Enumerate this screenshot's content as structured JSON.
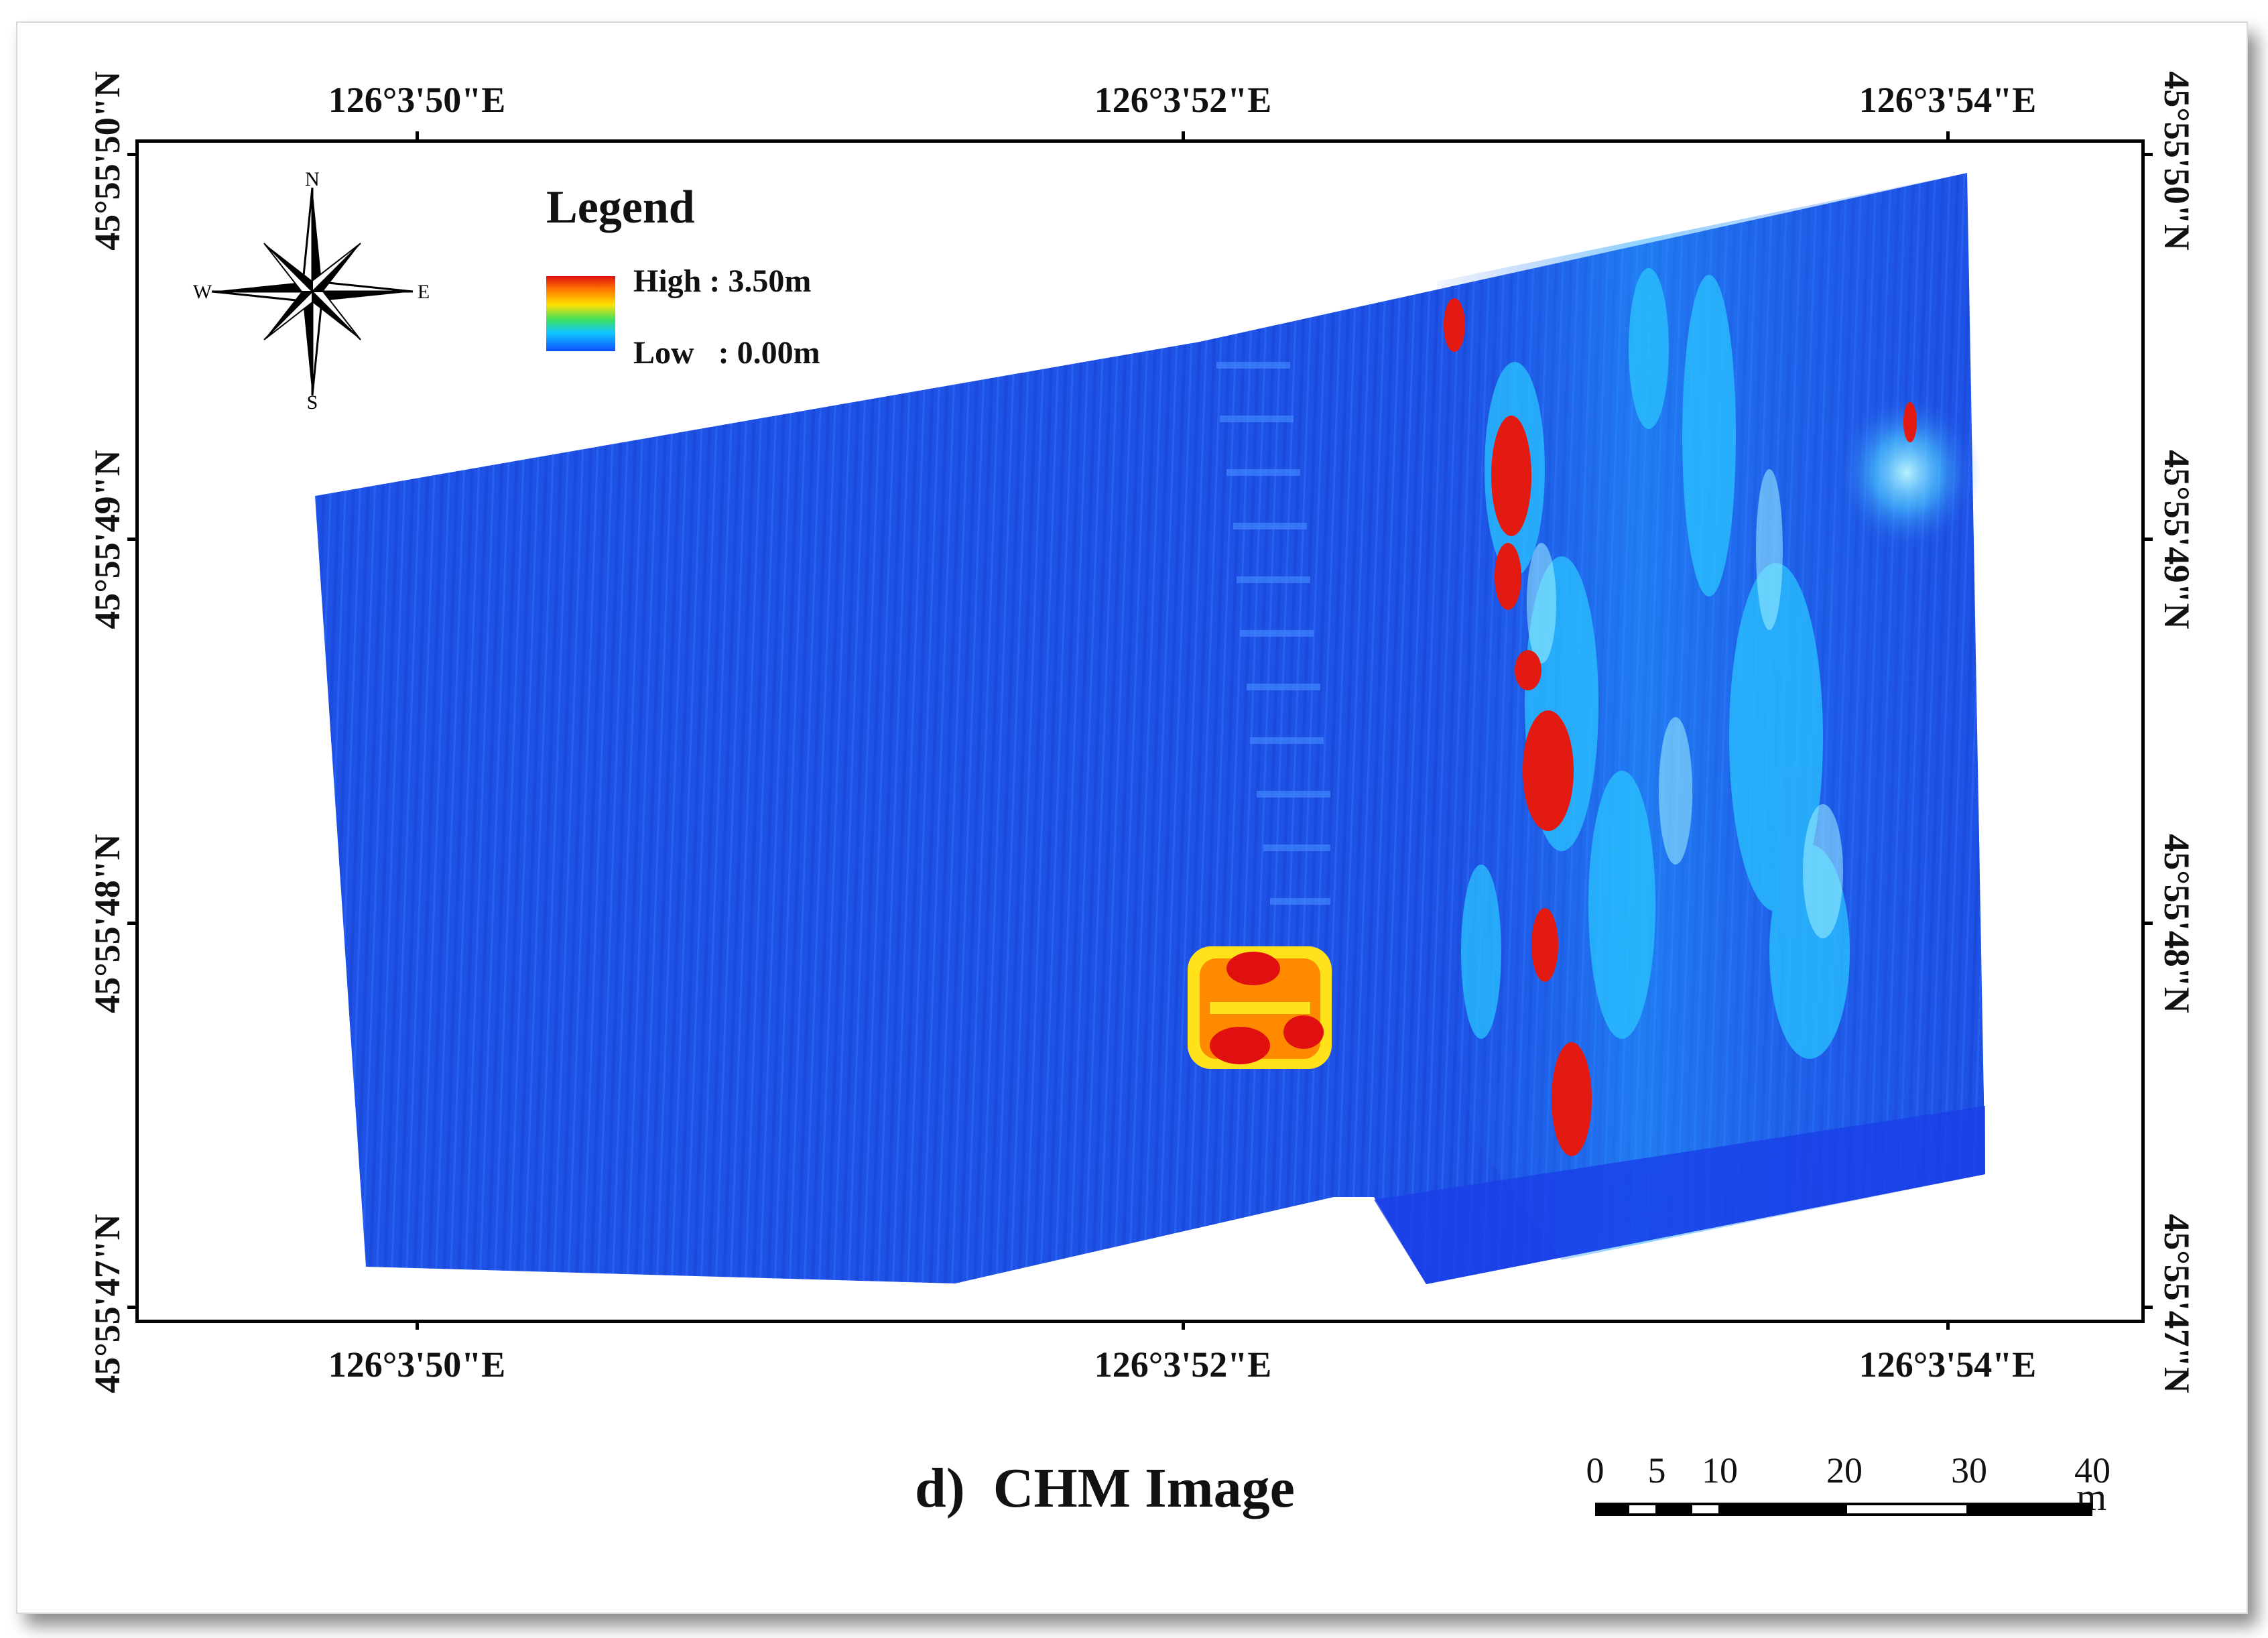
{
  "coordinates": {
    "longitude_labels": [
      "126°3'50\"E",
      "126°3'52\"E",
      "126°3'54\"E"
    ],
    "latitude_labels": [
      "45°55'50\"N",
      "45°55'49\"N",
      "45°55'48\"N",
      "45°55'47\"N"
    ]
  },
  "north_arrow": {
    "n": "N",
    "s": "S",
    "e": "E",
    "w": "W"
  },
  "legend": {
    "title": "Legend",
    "high": "High : 3.50m",
    "low": "Low   : 0.00m",
    "colors": [
      "#e01010",
      "#ff7a00",
      "#ffe000",
      "#40e060",
      "#10c8ff",
      "#1050ff"
    ]
  },
  "figure_title": "d)  CHM Image",
  "scale_bar": {
    "labels": [
      "0",
      "5",
      "10",
      "20",
      "30",
      "40"
    ],
    "unit": "m"
  },
  "colors": {
    "raster_base": "#1e52e6",
    "raster_light": "#23b8ff",
    "raster_high": "#e21a12",
    "raster_mid": "#ffd21a"
  }
}
